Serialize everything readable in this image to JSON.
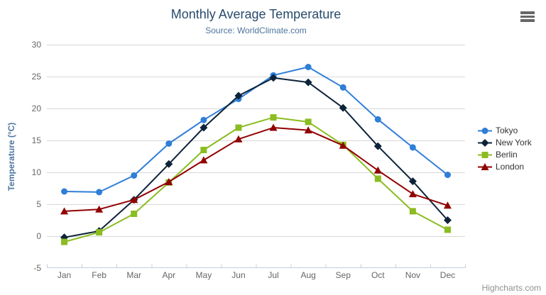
{
  "credits": {
    "text": "Highcharts.com"
  },
  "exporting": {
    "icon": "hamburger-icon",
    "icon_color": "#666666"
  },
  "y_axis": {
    "title": "Temperature (°C)",
    "ticks": [
      -5,
      0,
      5,
      10,
      15,
      20,
      25,
      30
    ]
  },
  "x_axis": {
    "categories": [
      "Jan",
      "Feb",
      "Mar",
      "Apr",
      "May",
      "Jun",
      "Jul",
      "Aug",
      "Sep",
      "Oct",
      "Nov",
      "Dec"
    ]
  },
  "styles": {
    "title_color": "#274b6d",
    "subtitle_color": "#4d759e",
    "axis_title_color": "#4d759e",
    "tick_label_color": "#666666",
    "grid_color": "#d8d8d8",
    "axis_line_color": "#c0d0e0",
    "legend_text_color": "#333333",
    "credits_color": "#909090",
    "background": "#ffffff"
  },
  "chart_data": {
    "type": "line",
    "title": "Monthly Average Temperature",
    "subtitle": "Source: WorldClimate.com",
    "xlabel": "",
    "ylabel": "Temperature (°C)",
    "ylim": [
      -5,
      30
    ],
    "ytick_step": 5,
    "grid": true,
    "legend_position": "right",
    "categories": [
      "Jan",
      "Feb",
      "Mar",
      "Apr",
      "May",
      "Jun",
      "Jul",
      "Aug",
      "Sep",
      "Oct",
      "Nov",
      "Dec"
    ],
    "series": [
      {
        "name": "Tokyo",
        "color": "#2f7ed8",
        "marker": "circle",
        "values": [
          7.0,
          6.9,
          9.5,
          14.5,
          18.2,
          21.5,
          25.2,
          26.5,
          23.3,
          18.3,
          13.9,
          9.6
        ]
      },
      {
        "name": "New York",
        "color": "#0d233a",
        "marker": "diamond",
        "values": [
          -0.2,
          0.8,
          5.7,
          11.3,
          17.0,
          22.0,
          24.8,
          24.1,
          20.1,
          14.1,
          8.6,
          2.5
        ]
      },
      {
        "name": "Berlin",
        "color": "#8bbc21",
        "marker": "square",
        "values": [
          -0.9,
          0.6,
          3.5,
          8.4,
          13.5,
          17.0,
          18.6,
          17.9,
          14.3,
          9.0,
          3.9,
          1.0
        ]
      },
      {
        "name": "London",
        "color": "#910000",
        "marker": "triangle",
        "values": [
          3.9,
          4.2,
          5.7,
          8.5,
          11.9,
          15.2,
          17.0,
          16.6,
          14.2,
          10.3,
          6.6,
          4.8
        ]
      }
    ]
  }
}
